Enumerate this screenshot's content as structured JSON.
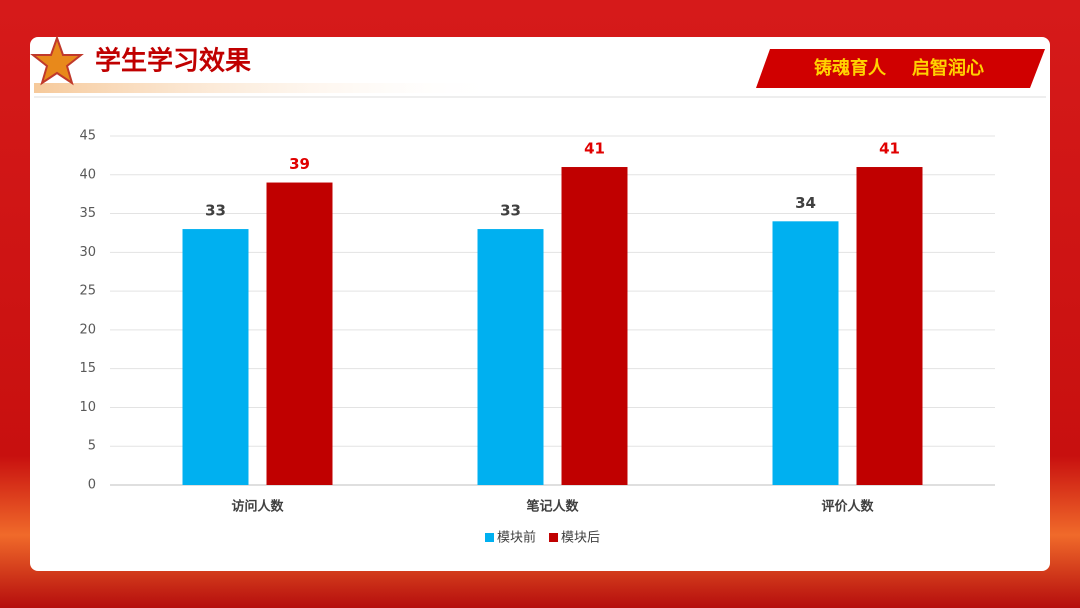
{
  "header": {
    "title": "学生学习效果",
    "slogan": [
      "铸魂育人",
      "启智润心"
    ]
  },
  "chart_data": {
    "type": "bar",
    "categories": [
      "访问人数",
      "笔记人数",
      "评价人数"
    ],
    "series": [
      {
        "name": "模块前",
        "color": "#00b0f0",
        "values": [
          33,
          33,
          34
        ]
      },
      {
        "name": "模块后",
        "color": "#c00000",
        "values": [
          39,
          41,
          41
        ]
      }
    ],
    "ylim": [
      0,
      45
    ],
    "yticks": [
      0,
      5,
      10,
      15,
      20,
      25,
      30,
      35,
      40,
      45
    ],
    "grid": true,
    "legend": "bottom"
  }
}
